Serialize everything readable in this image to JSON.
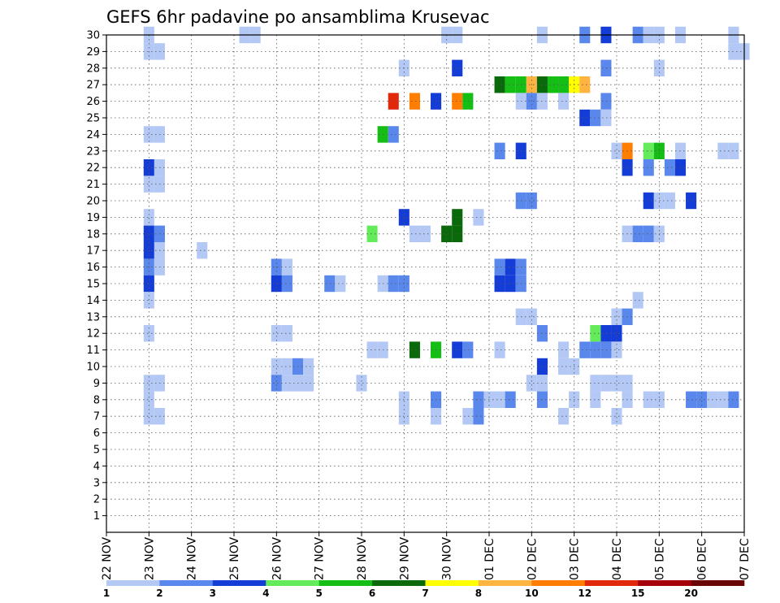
{
  "chart_data": {
    "type": "heatmap",
    "title": "GEFS 6hr padavine po ansamblima Krusevac",
    "y_ticks": [
      "1",
      "2",
      "3",
      "4",
      "5",
      "6",
      "7",
      "8",
      "9",
      "10",
      "11",
      "12",
      "13",
      "14",
      "15",
      "16",
      "17",
      "18",
      "19",
      "20",
      "21",
      "22",
      "23",
      "24",
      "25",
      "26",
      "27",
      "28",
      "29",
      "30"
    ],
    "x_ticks": [
      "22 NOV",
      "23 NOV",
      "24 NOV",
      "25 NOV",
      "26 NOV",
      "27 NOV",
      "28 NOV",
      "29 NOV",
      "30 NOV",
      "01 DEC",
      "02 DEC",
      "03 DEC",
      "04 DEC",
      "05 DEC",
      "06 DEC",
      "07 DEC"
    ],
    "x_range_days": [
      0,
      15
    ],
    "y_range": [
      0,
      30
    ],
    "grid": true,
    "legend": {
      "placement": "bottom",
      "bounds": [
        "1",
        "2",
        "3",
        "4",
        "5",
        "6",
        "7",
        "8",
        "10",
        "12",
        "15",
        "20"
      ],
      "colors": [
        "#b4c8f5",
        "#5a87eb",
        "#143cd7",
        "#64eb5a",
        "#14be14",
        "#0a690a",
        "#ffff00",
        "#ffb441",
        "#ff7d00",
        "#e1280a",
        "#a5000a",
        "#690505"
      ]
    },
    "cells": [
      [
        1.0,
        30,
        0
      ],
      [
        3.25,
        30,
        0
      ],
      [
        3.5,
        30,
        0
      ],
      [
        8.0,
        30,
        0
      ],
      [
        8.25,
        30,
        0
      ],
      [
        10.25,
        30,
        0
      ],
      [
        11.25,
        30,
        1
      ],
      [
        11.75,
        30,
        2
      ],
      [
        12.5,
        30,
        1
      ],
      [
        12.75,
        30,
        0
      ],
      [
        13.0,
        30,
        0
      ],
      [
        13.5,
        30,
        0
      ],
      [
        14.75,
        30,
        0
      ],
      [
        1.0,
        29,
        0
      ],
      [
        1.25,
        29,
        0
      ],
      [
        14.75,
        29,
        0
      ],
      [
        15.0,
        29,
        0
      ],
      [
        7.0,
        28,
        0
      ],
      [
        8.25,
        28,
        2
      ],
      [
        11.75,
        28,
        1
      ],
      [
        13.0,
        28,
        0
      ],
      [
        9.25,
        27,
        5
      ],
      [
        9.5,
        27,
        4
      ],
      [
        9.75,
        27,
        4
      ],
      [
        10.0,
        27,
        7
      ],
      [
        10.25,
        27,
        5
      ],
      [
        10.5,
        27,
        4
      ],
      [
        10.75,
        27,
        4
      ],
      [
        11.0,
        27,
        6
      ],
      [
        11.25,
        27,
        7
      ],
      [
        6.75,
        26,
        9
      ],
      [
        7.25,
        26,
        8
      ],
      [
        7.75,
        26,
        2
      ],
      [
        8.25,
        26,
        8
      ],
      [
        8.5,
        26,
        4
      ],
      [
        9.75,
        26,
        0
      ],
      [
        10.0,
        26,
        1
      ],
      [
        10.25,
        26,
        0
      ],
      [
        10.75,
        26,
        0
      ],
      [
        11.75,
        26,
        1
      ],
      [
        11.25,
        25,
        2
      ],
      [
        11.5,
        25,
        1
      ],
      [
        11.75,
        25,
        0
      ],
      [
        1.0,
        24,
        0
      ],
      [
        1.25,
        24,
        0
      ],
      [
        6.5,
        24,
        4
      ],
      [
        6.75,
        24,
        1
      ],
      [
        9.25,
        23,
        1
      ],
      [
        9.75,
        23,
        2
      ],
      [
        12.0,
        23,
        0
      ],
      [
        12.25,
        23,
        8
      ],
      [
        12.75,
        23,
        3
      ],
      [
        13.0,
        23,
        4
      ],
      [
        13.5,
        23,
        0
      ],
      [
        14.5,
        23,
        0
      ],
      [
        14.75,
        23,
        0
      ],
      [
        1.0,
        22,
        2
      ],
      [
        1.25,
        22,
        0
      ],
      [
        12.75,
        22,
        1
      ],
      [
        13.25,
        22,
        1
      ],
      [
        13.5,
        22,
        2
      ],
      [
        12.25,
        22,
        2
      ],
      [
        1.0,
        21,
        0
      ],
      [
        1.25,
        21,
        0
      ],
      [
        9.75,
        20,
        1
      ],
      [
        10.0,
        20,
        1
      ],
      [
        12.75,
        20,
        2
      ],
      [
        13.0,
        20,
        0
      ],
      [
        13.25,
        20,
        0
      ],
      [
        13.75,
        20,
        2
      ],
      [
        1.0,
        19,
        0
      ],
      [
        7.0,
        19,
        2
      ],
      [
        8.25,
        19,
        5
      ],
      [
        8.75,
        19,
        0
      ],
      [
        1.0,
        18,
        2
      ],
      [
        1.25,
        18,
        1
      ],
      [
        6.25,
        18,
        3
      ],
      [
        7.25,
        18,
        0
      ],
      [
        7.5,
        18,
        0
      ],
      [
        8.0,
        18,
        5
      ],
      [
        8.25,
        18,
        5
      ],
      [
        12.25,
        18,
        0
      ],
      [
        12.5,
        18,
        1
      ],
      [
        12.75,
        18,
        1
      ],
      [
        13.0,
        18,
        0
      ],
      [
        1.0,
        17,
        2
      ],
      [
        1.25,
        17,
        0
      ],
      [
        2.25,
        17,
        0
      ],
      [
        1.0,
        16,
        1
      ],
      [
        1.25,
        16,
        0
      ],
      [
        4.0,
        16,
        1
      ],
      [
        4.25,
        16,
        0
      ],
      [
        9.25,
        16,
        1
      ],
      [
        9.5,
        16,
        2
      ],
      [
        9.75,
        16,
        1
      ],
      [
        1.0,
        15,
        2
      ],
      [
        4.0,
        15,
        2
      ],
      [
        4.25,
        15,
        1
      ],
      [
        5.25,
        15,
        1
      ],
      [
        5.5,
        15,
        0
      ],
      [
        6.5,
        15,
        0
      ],
      [
        6.75,
        15,
        1
      ],
      [
        7.0,
        15,
        1
      ],
      [
        9.25,
        15,
        2
      ],
      [
        9.5,
        15,
        2
      ],
      [
        9.75,
        15,
        1
      ],
      [
        1.0,
        14,
        0
      ],
      [
        12.5,
        14,
        0
      ],
      [
        9.75,
        13,
        0
      ],
      [
        10.0,
        13,
        0
      ],
      [
        12.0,
        13,
        0
      ],
      [
        12.25,
        13,
        1
      ],
      [
        1.0,
        12,
        0
      ],
      [
        4.0,
        12,
        0
      ],
      [
        4.25,
        12,
        0
      ],
      [
        10.25,
        12,
        1
      ],
      [
        11.5,
        12,
        3
      ],
      [
        11.75,
        12,
        2
      ],
      [
        12.0,
        12,
        2
      ],
      [
        6.25,
        11,
        0
      ],
      [
        6.5,
        11,
        0
      ],
      [
        7.25,
        11,
        5
      ],
      [
        7.75,
        11,
        4
      ],
      [
        8.25,
        11,
        2
      ],
      [
        8.5,
        11,
        1
      ],
      [
        9.25,
        11,
        0
      ],
      [
        10.75,
        11,
        0
      ],
      [
        11.25,
        11,
        1
      ],
      [
        11.5,
        11,
        1
      ],
      [
        11.75,
        11,
        1
      ],
      [
        12.0,
        11,
        0
      ],
      [
        4.0,
        10,
        0
      ],
      [
        4.25,
        10,
        0
      ],
      [
        4.5,
        10,
        1
      ],
      [
        4.75,
        10,
        0
      ],
      [
        10.75,
        10,
        0
      ],
      [
        10.25,
        10,
        2
      ],
      [
        11.0,
        10,
        0
      ],
      [
        1.0,
        9,
        0
      ],
      [
        1.25,
        9,
        0
      ],
      [
        4.0,
        9,
        1
      ],
      [
        4.25,
        9,
        0
      ],
      [
        4.5,
        9,
        0
      ],
      [
        4.75,
        9,
        0
      ],
      [
        6.0,
        9,
        0
      ],
      [
        10.0,
        9,
        0
      ],
      [
        10.25,
        9,
        0
      ],
      [
        11.5,
        9,
        0
      ],
      [
        11.75,
        9,
        0
      ],
      [
        12.0,
        9,
        0
      ],
      [
        12.25,
        9,
        0
      ],
      [
        1.0,
        8,
        0
      ],
      [
        7.0,
        8,
        0
      ],
      [
        7.75,
        8,
        1
      ],
      [
        8.75,
        8,
        1
      ],
      [
        9.0,
        8,
        0
      ],
      [
        9.25,
        8,
        0
      ],
      [
        9.5,
        8,
        1
      ],
      [
        10.25,
        8,
        1
      ],
      [
        11.0,
        8,
        0
      ],
      [
        11.5,
        8,
        0
      ],
      [
        12.25,
        8,
        0
      ],
      [
        12.75,
        8,
        0
      ],
      [
        13.0,
        8,
        0
      ],
      [
        13.75,
        8,
        1
      ],
      [
        14.0,
        8,
        1
      ],
      [
        14.25,
        8,
        0
      ],
      [
        14.5,
        8,
        0
      ],
      [
        14.75,
        8,
        1
      ],
      [
        1.0,
        7,
        0
      ],
      [
        1.25,
        7,
        0
      ],
      [
        7.0,
        7,
        0
      ],
      [
        7.75,
        7,
        0
      ],
      [
        8.5,
        7,
        0
      ],
      [
        8.75,
        7,
        1
      ],
      [
        10.75,
        7,
        0
      ],
      [
        12.0,
        7,
        0
      ]
    ]
  }
}
